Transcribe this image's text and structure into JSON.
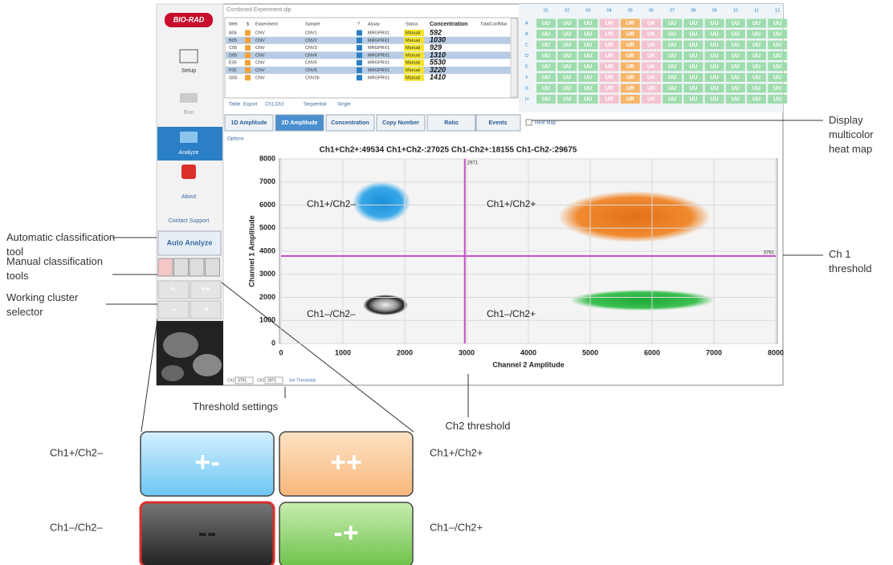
{
  "annotations": {
    "auto": "Automatic classification tool",
    "manual": "Manual classification tools",
    "cluster": "Working cluster selector",
    "heat": "Display multicolor heat map",
    "ch1": "Ch 1 threshold",
    "threshold_settings": "Threshold settings",
    "ch2": "Ch2 threshold"
  },
  "sidebar": {
    "logo": "BIO-RAD",
    "setup": "Setup",
    "run": "Run",
    "analyze": "Analyze",
    "about": "About",
    "contact": "Contact Support",
    "auto_analyze": "Auto Analyze",
    "cluster_buttons": [
      "+-",
      "++",
      "--",
      "-+"
    ]
  },
  "table": {
    "title": "Combined Experiment.qlp",
    "columns": [
      "Well",
      "$",
      "Experiment",
      "Sample",
      "?",
      "Assay",
      "Status",
      "Concentration",
      "TotalConfMax"
    ],
    "rows": [
      [
        "A05",
        "CNV",
        "CNV1",
        "MRGPRX1",
        "Manual",
        592
      ],
      [
        "B05",
        "CNV",
        "CNV2",
        "MRGPRX1",
        "Manual",
        1030
      ],
      [
        "C05",
        "CNV",
        "CNV3",
        "MRGPRX1",
        "Manual",
        929
      ],
      [
        "D05",
        "CNV",
        "CNV4",
        "MRGPRX1",
        "Manual",
        1310
      ],
      [
        "E05",
        "CNV",
        "CNV5",
        "MRGPRX1",
        "Manual",
        5530
      ],
      [
        "F05",
        "CNV",
        "CNV6",
        "MRGPRX1",
        "Manual",
        3220
      ],
      [
        "G05",
        "CNV",
        "CNV2b",
        "MRGPRX1",
        "Manual",
        1410
      ]
    ]
  },
  "controls": [
    "Table",
    "Export",
    "Ch1,Ch2",
    "Sequential",
    "Single"
  ],
  "plate": {
    "columns": [
      "01",
      "02",
      "03",
      "04",
      "05",
      "06",
      "07",
      "08",
      "09",
      "10",
      "11",
      "12"
    ],
    "rows": [
      "A",
      "B",
      "C",
      "D",
      "E",
      "F",
      "G",
      "H"
    ],
    "cells": [
      "UU",
      "UU",
      "UU",
      "UR",
      "UR",
      "UK",
      "UU",
      "UU",
      "UU",
      "UU",
      "UU",
      "UU"
    ]
  },
  "tabs": [
    "1D Amplitude",
    "2D Amplitude",
    "Concentration",
    "Copy Number",
    "Ratio",
    "Events"
  ],
  "heat_map": "Heat Map",
  "options": "Options",
  "chart_data": {
    "type": "scatter",
    "title": "Ch1+Ch2+:49534 Ch1+Ch2-:27025 Ch1-Ch2+:18155 Ch1-Ch2-:29675",
    "x_label": "Channel 2 Amplitude",
    "y_label": "Channel 1 Amplitude",
    "xlim": [
      0,
      8000
    ],
    "ylim": [
      0,
      8000
    ],
    "xticks": [
      0,
      1000,
      2000,
      3000,
      4000,
      5000,
      6000,
      7000,
      8000
    ],
    "yticks": [
      0,
      1000,
      2000,
      3000,
      4000,
      5000,
      6000,
      7000,
      8000
    ],
    "grid": true,
    "x_threshold": 2971,
    "y_threshold": 3791,
    "quadrant_labels": [
      "Ch1+/Ch2–",
      "Ch1+/Ch2+",
      "Ch1–/Ch2–",
      "Ch1–/Ch2+"
    ]
  },
  "threshold_bar": {
    "ch1_label": "Ch1",
    "ch1_value": 3791,
    "ch2_label": "Ch2",
    "ch2_value": 2971,
    "button": "Set Thresholds"
  },
  "zoom": [
    {
      "label": "+-",
      "caption": "Ch1+/Ch2–"
    },
    {
      "label": "++",
      "caption": "Ch1+/Ch2+"
    },
    {
      "label": "--",
      "caption": "Ch1–/Ch2–"
    },
    {
      "label": "-+",
      "caption": "Ch1–/Ch2+"
    }
  ]
}
